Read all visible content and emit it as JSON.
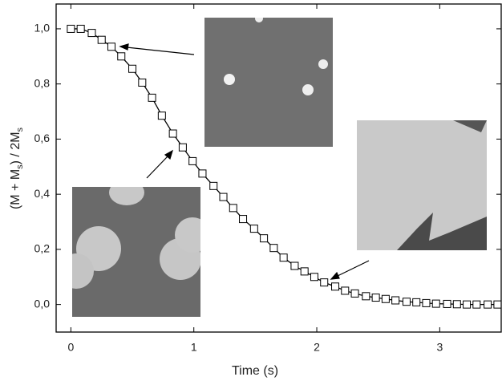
{
  "chart_data": {
    "type": "line",
    "xlabel": "Time (s)",
    "ylabel": [
      "(M + M",
      "s",
      ") / 2M",
      "s"
    ],
    "x": [
      0,
      0.08,
      0.17,
      0.25,
      0.33,
      0.41,
      0.5,
      0.58,
      0.66,
      0.74,
      0.83,
      0.91,
      0.99,
      1.07,
      1.16,
      1.24,
      1.32,
      1.4,
      1.49,
      1.57,
      1.65,
      1.73,
      1.82,
      1.9,
      1.98,
      2.06,
      2.15,
      2.23,
      2.31,
      2.4,
      2.48,
      2.56,
      2.64,
      2.73,
      2.81,
      2.89,
      2.97,
      3.06,
      3.14,
      3.22,
      3.3,
      3.39,
      3.47
    ],
    "series": [
      {
        "color": "#000000",
        "values": [
          1.0,
          1.0,
          0.985,
          0.96,
          0.935,
          0.9,
          0.855,
          0.805,
          0.75,
          0.685,
          0.62,
          0.57,
          0.52,
          0.475,
          0.43,
          0.39,
          0.35,
          0.31,
          0.275,
          0.24,
          0.205,
          0.17,
          0.14,
          0.12,
          0.1,
          0.08,
          0.065,
          0.05,
          0.04,
          0.03,
          0.025,
          0.02,
          0.015,
          0.01,
          0.008,
          0.005,
          0.003,
          0.002,
          0.001,
          0,
          0,
          0,
          0
        ]
      }
    ],
    "xlim": [
      -0.12,
      3.5
    ],
    "xticks": [
      0,
      1,
      2,
      3
    ],
    "ylim": [
      -0.1,
      1.09
    ],
    "yticks": [
      {
        "value": 0,
        "label": "0,0"
      },
      {
        "value": 0.2,
        "label": "0,2"
      },
      {
        "value": 0.4,
        "label": "0,4"
      },
      {
        "value": 0.6,
        "label": "0,6"
      },
      {
        "value": 0.8,
        "label": "0,8"
      },
      {
        "value": 1.0,
        "label": "1,0"
      }
    ]
  }
}
